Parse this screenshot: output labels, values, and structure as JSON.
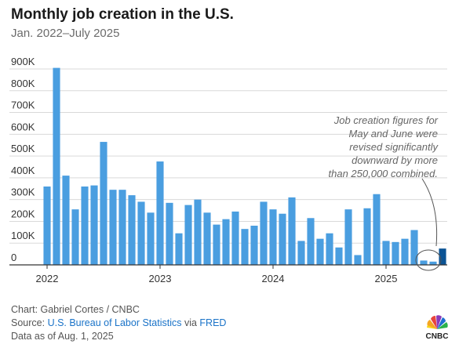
{
  "header": {
    "title": "Monthly job creation in the U.S.",
    "subtitle": "Jan. 2022–July 2025"
  },
  "chart_data": {
    "type": "bar",
    "title": "Monthly job creation in the U.S.",
    "subtitle": "Jan. 2022–July 2025",
    "xlabel": "",
    "ylabel": "",
    "ylim": [
      0,
      900000
    ],
    "yticks": [
      "0",
      "100K",
      "200K",
      "300K",
      "400K",
      "500K",
      "600K",
      "700K",
      "800K",
      "900K"
    ],
    "xticks": [
      "2022",
      "2023",
      "2024",
      "2025"
    ],
    "grid": true,
    "categories": [
      "Jan 2022",
      "Feb 2022",
      "Mar 2022",
      "Apr 2022",
      "May 2022",
      "Jun 2022",
      "Jul 2022",
      "Aug 2022",
      "Sep 2022",
      "Oct 2022",
      "Nov 2022",
      "Dec 2022",
      "Jan 2023",
      "Feb 2023",
      "Mar 2023",
      "Apr 2023",
      "May 2023",
      "Jun 2023",
      "Jul 2023",
      "Aug 2023",
      "Sep 2023",
      "Oct 2023",
      "Nov 2023",
      "Dec 2023",
      "Jan 2024",
      "Feb 2024",
      "Mar 2024",
      "Apr 2024",
      "May 2024",
      "Jun 2024",
      "Jul 2024",
      "Aug 2024",
      "Sep 2024",
      "Oct 2024",
      "Nov 2024",
      "Dec 2024",
      "Jan 2025",
      "Feb 2025",
      "Mar 2025",
      "Apr 2025",
      "May 2025",
      "Jun 2025",
      "Jul 2025"
    ],
    "values": [
      360000,
      905000,
      410000,
      255000,
      360000,
      365000,
      565000,
      345000,
      345000,
      320000,
      290000,
      240000,
      475000,
      285000,
      145000,
      275000,
      300000,
      240000,
      185000,
      210000,
      245000,
      165000,
      180000,
      290000,
      255000,
      235000,
      310000,
      110000,
      215000,
      120000,
      145000,
      80000,
      255000,
      45000,
      260000,
      325000,
      110000,
      105000,
      120000,
      160000,
      20000,
      15000,
      75000
    ],
    "colors": {
      "bar": "#4a9ee0",
      "highlight": "#0b5394",
      "grid": "#d9d9d9",
      "axis": "#333333"
    },
    "annotation": {
      "lines": [
        "Job creation figures for",
        "May and June were",
        "revised significantly",
        "downward by more",
        "than 250,000 combined."
      ]
    }
  },
  "footer": {
    "credit": "Chart: Gabriel Cortes / CNBC",
    "source_prefix": "Source: ",
    "source_link1": "U.S. Bureau of Labor Statistics",
    "source_mid": " via ",
    "source_link2": "FRED",
    "data_as_of": "Data as of Aug. 1, 2025",
    "logo_text": "CNBC"
  }
}
